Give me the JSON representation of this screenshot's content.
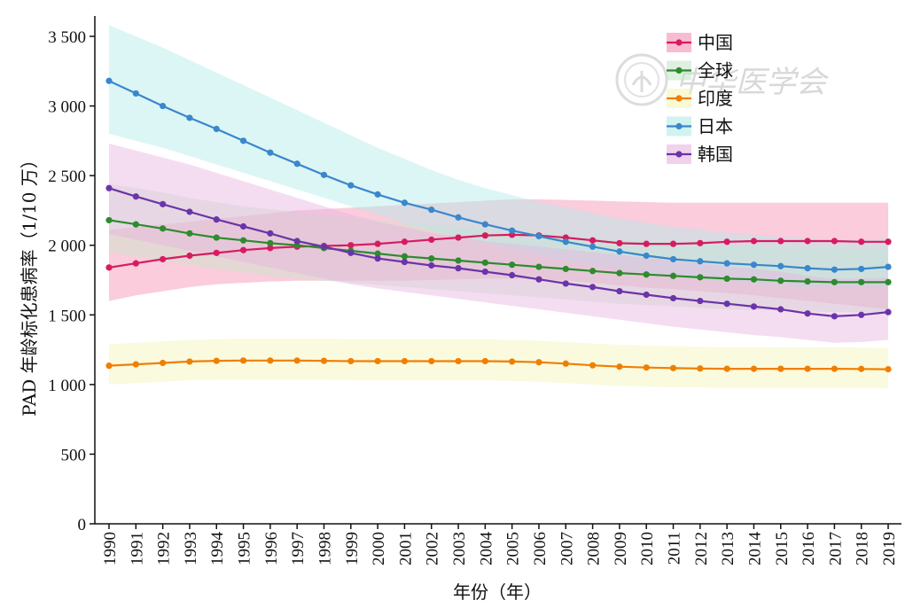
{
  "chart_data": {
    "type": "line",
    "xlabel": "年份（年）",
    "ylabel": "PAD 年龄标化患病率（1/10 万）",
    "ylim": [
      0,
      3500
    ],
    "yticks": [
      0,
      500,
      1000,
      1500,
      2000,
      2500,
      3000,
      3500
    ],
    "ytick_labels": [
      "0",
      "500",
      "1 000",
      "1 500",
      "2 000",
      "2 500",
      "3 000",
      "3 500"
    ],
    "x": [
      "1990",
      "1991",
      "1992",
      "1993",
      "1994",
      "1995",
      "1996",
      "1997",
      "1998",
      "1999",
      "2000",
      "2001",
      "2002",
      "2003",
      "2004",
      "2005",
      "2006",
      "2007",
      "2008",
      "2009",
      "2010",
      "2011",
      "2012",
      "2013",
      "2014",
      "2015",
      "2016",
      "2017",
      "2018",
      "2019"
    ],
    "legend_position": "top-right",
    "grid": false,
    "series": [
      {
        "name": "中国",
        "color": "#d81b60",
        "band_color": "#f48fb1",
        "values": [
          1840,
          1870,
          1900,
          1925,
          1945,
          1965,
          1980,
          1990,
          1995,
          2000,
          2010,
          2025,
          2040,
          2055,
          2070,
          2075,
          2070,
          2055,
          2035,
          2015,
          2010,
          2010,
          2015,
          2025,
          2030,
          2030,
          2030,
          2030,
          2025,
          2025
        ],
        "lower": [
          1600,
          1640,
          1670,
          1700,
          1720,
          1730,
          1740,
          1745,
          1745,
          1745,
          1745,
          1745,
          1750,
          1755,
          1760,
          1760,
          1755,
          1745,
          1730,
          1710,
          1695,
          1685,
          1670,
          1655,
          1640,
          1620,
          1600,
          1580,
          1560,
          1540
        ],
        "upper": [
          2110,
          2130,
          2150,
          2170,
          2190,
          2210,
          2230,
          2250,
          2260,
          2270,
          2280,
          2290,
          2300,
          2310,
          2320,
          2330,
          2330,
          2325,
          2320,
          2315,
          2310,
          2305,
          2305,
          2305,
          2305,
          2305,
          2305,
          2305,
          2305,
          2305
        ]
      },
      {
        "name": "全球",
        "color": "#2e8b2e",
        "band_color": "#c8e6c9",
        "values": [
          2180,
          2150,
          2120,
          2085,
          2055,
          2035,
          2015,
          2000,
          1980,
          1960,
          1940,
          1920,
          1905,
          1890,
          1875,
          1860,
          1845,
          1830,
          1815,
          1800,
          1790,
          1780,
          1770,
          1760,
          1755,
          1745,
          1740,
          1735,
          1735,
          1735
        ],
        "lower": [
          1950,
          1920,
          1890,
          1860,
          1830,
          1805,
          1780,
          1760,
          1745,
          1730,
          1715,
          1700,
          1685,
          1670,
          1655,
          1640,
          1625,
          1610,
          1595,
          1580,
          1570,
          1560,
          1550,
          1540,
          1535,
          1530,
          1525,
          1520,
          1520,
          1520
        ],
        "upper": [
          2440,
          2410,
          2380,
          2340,
          2310,
          2280,
          2260,
          2240,
          2220,
          2200,
          2180,
          2160,
          2145,
          2130,
          2115,
          2100,
          2085,
          2070,
          2055,
          2040,
          2030,
          2020,
          2010,
          2000,
          1995,
          1990,
          1985,
          1980,
          1980,
          1980
        ]
      },
      {
        "name": "印度",
        "color": "#f07f00",
        "band_color": "#f5f5b8",
        "values": [
          1135,
          1145,
          1155,
          1165,
          1170,
          1172,
          1172,
          1172,
          1170,
          1168,
          1168,
          1168,
          1168,
          1168,
          1168,
          1165,
          1160,
          1150,
          1138,
          1128,
          1122,
          1118,
          1115,
          1113,
          1113,
          1113,
          1113,
          1113,
          1112,
          1110
        ],
        "lower": [
          1000,
          1010,
          1020,
          1030,
          1035,
          1035,
          1035,
          1035,
          1035,
          1030,
          1030,
          1030,
          1030,
          1030,
          1030,
          1025,
          1020,
          1010,
          1000,
          990,
          985,
          980,
          978,
          975,
          975,
          975,
          975,
          975,
          975,
          972
        ],
        "upper": [
          1290,
          1300,
          1310,
          1320,
          1325,
          1330,
          1330,
          1330,
          1330,
          1325,
          1325,
          1325,
          1325,
          1325,
          1325,
          1320,
          1315,
          1305,
          1295,
          1285,
          1280,
          1275,
          1270,
          1268,
          1268,
          1268,
          1268,
          1268,
          1265,
          1262
        ]
      },
      {
        "name": "日本",
        "color": "#3a87cc",
        "band_color": "#b2ebe8",
        "values": [
          3180,
          3090,
          3000,
          2915,
          2835,
          2750,
          2665,
          2585,
          2505,
          2430,
          2365,
          2305,
          2255,
          2200,
          2150,
          2105,
          2065,
          2025,
          1990,
          1955,
          1925,
          1900,
          1885,
          1870,
          1860,
          1850,
          1835,
          1825,
          1830,
          1845
        ],
        "lower": [
          2800,
          2750,
          2700,
          2640,
          2580,
          2520,
          2460,
          2400,
          2340,
          2280,
          2220,
          2160,
          2110,
          2060,
          2010,
          1970,
          1930,
          1890,
          1860,
          1830,
          1800,
          1775,
          1755,
          1740,
          1725,
          1710,
          1700,
          1690,
          1690,
          1700
        ],
        "upper": [
          3580,
          3500,
          3420,
          3330,
          3240,
          3150,
          3060,
          2970,
          2880,
          2790,
          2700,
          2620,
          2540,
          2470,
          2410,
          2360,
          2310,
          2270,
          2230,
          2190,
          2160,
          2130,
          2110,
          2090,
          2075,
          2060,
          2050,
          2040,
          2040,
          2050
        ]
      },
      {
        "name": "韩国",
        "color": "#6a35a8",
        "band_color": "#e8b4e0",
        "values": [
          2410,
          2350,
          2295,
          2240,
          2185,
          2135,
          2085,
          2030,
          1990,
          1945,
          1905,
          1880,
          1855,
          1835,
          1810,
          1785,
          1755,
          1725,
          1700,
          1670,
          1645,
          1620,
          1600,
          1580,
          1560,
          1540,
          1510,
          1490,
          1500,
          1520
        ],
        "lower": [
          2080,
          2040,
          2000,
          1960,
          1920,
          1880,
          1840,
          1800,
          1760,
          1720,
          1690,
          1665,
          1640,
          1615,
          1590,
          1565,
          1540,
          1515,
          1490,
          1465,
          1440,
          1415,
          1395,
          1375,
          1355,
          1340,
          1320,
          1300,
          1305,
          1320
        ],
        "upper": [
          2730,
          2680,
          2630,
          2580,
          2520,
          2460,
          2400,
          2340,
          2280,
          2220,
          2170,
          2130,
          2090,
          2060,
          2030,
          2010,
          1990,
          1970,
          1950,
          1930,
          1910,
          1890,
          1870,
          1850,
          1830,
          1810,
          1780,
          1760,
          1760,
          1770
        ]
      }
    ]
  },
  "watermark": {
    "text": "中华医学会"
  }
}
